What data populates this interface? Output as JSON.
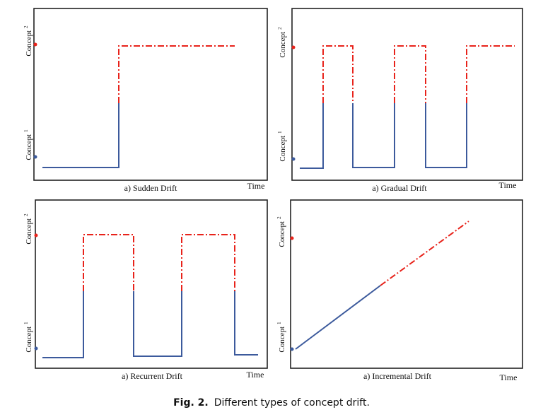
{
  "colors": {
    "concept1": "#3c5a9c",
    "concept2": "#e8231b",
    "frame": "#222222"
  },
  "labels": {
    "concept1": "Concept",
    "concept1_sup": "1",
    "concept2": "Concept",
    "concept2_sup": "2",
    "time": "Time"
  },
  "panels": [
    {
      "title": "a) Sudden Drift"
    },
    {
      "title": "a) Gradual Drift"
    },
    {
      "title": "a) Recurrent Drift"
    },
    {
      "title": "a) Incremental Drift"
    }
  ],
  "caption": {
    "label": "Fig. 2.",
    "text": "Different types of concept drift."
  }
}
